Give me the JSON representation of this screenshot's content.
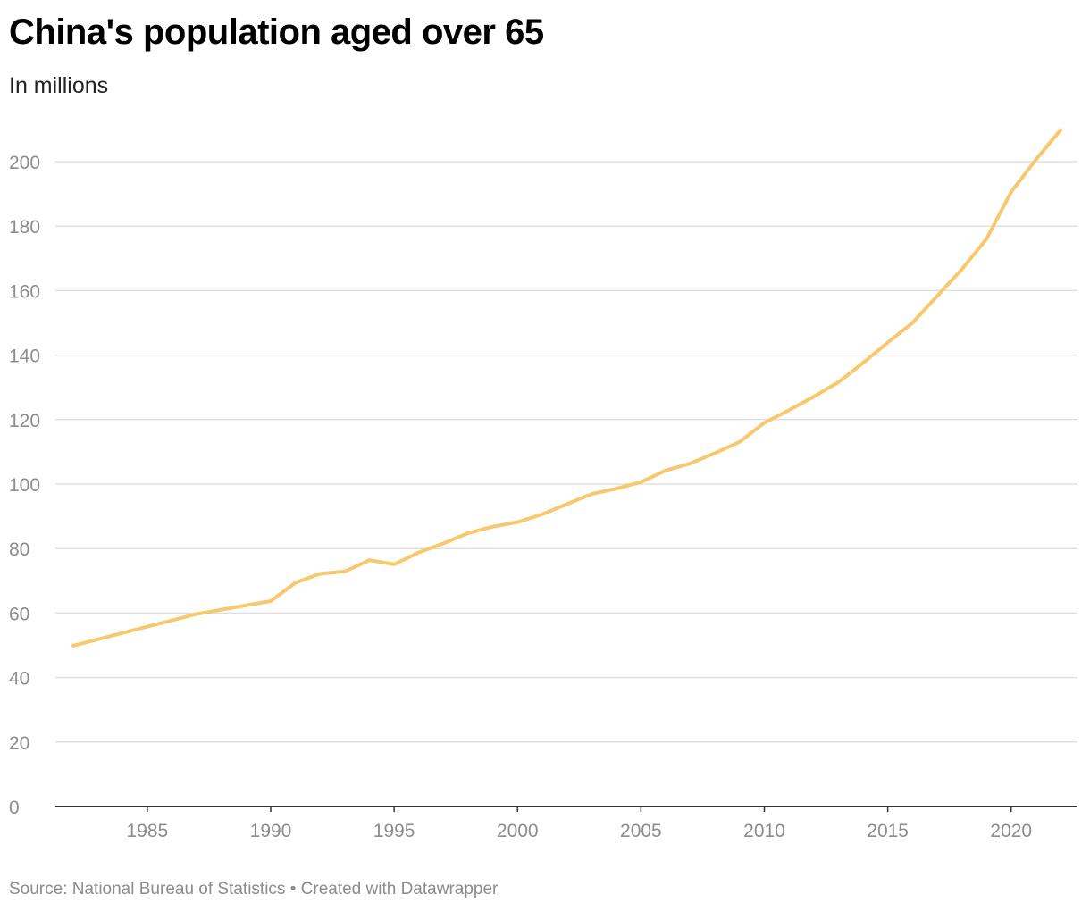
{
  "title": "China's population aged over 65",
  "subtitle": "In millions",
  "footer": "Source: National Bureau of Statistics • Created with Datawrapper",
  "colors": {
    "line": "#f8c86e",
    "grid": "#e0e0e0",
    "axis": "#333333",
    "tick_text": "#8c8c8c"
  },
  "chart_data": {
    "type": "line",
    "title": "China's population aged over 65",
    "subtitle": "In millions",
    "xlabel": "",
    "ylabel": "",
    "xlim": [
      1982,
      2022
    ],
    "ylim": [
      0,
      210
    ],
    "x_ticks": [
      1985,
      1990,
      1995,
      2000,
      2005,
      2010,
      2015,
      2020
    ],
    "y_ticks": [
      0,
      20,
      40,
      60,
      80,
      100,
      120,
      140,
      160,
      180,
      200
    ],
    "grid": "horizontal",
    "series": [
      {
        "x": [
          1982,
          1987,
          1990,
          1991,
          1992,
          1993,
          1994,
          1995,
          1996,
          1997,
          1998,
          1999,
          2000,
          2001,
          2002,
          2003,
          2004,
          2005,
          2006,
          2007,
          2008,
          2009,
          2010,
          2011,
          2012,
          2013,
          2014,
          2015,
          2016,
          2017,
          2018,
          2019,
          2020,
          2021,
          2022
        ],
        "values": [
          49.9,
          59.7,
          63.7,
          69.4,
          72.2,
          72.9,
          76.4,
          75.1,
          78.8,
          81.6,
          84.8,
          86.8,
          88.2,
          90.6,
          93.8,
          96.9,
          98.6,
          100.6,
          104.2,
          106.4,
          109.6,
          113.1,
          119.0,
          122.9,
          127.1,
          131.6,
          137.6,
          143.9,
          150.0,
          158.3,
          166.6,
          176.0,
          190.6,
          200.6,
          209.8
        ]
      }
    ]
  }
}
